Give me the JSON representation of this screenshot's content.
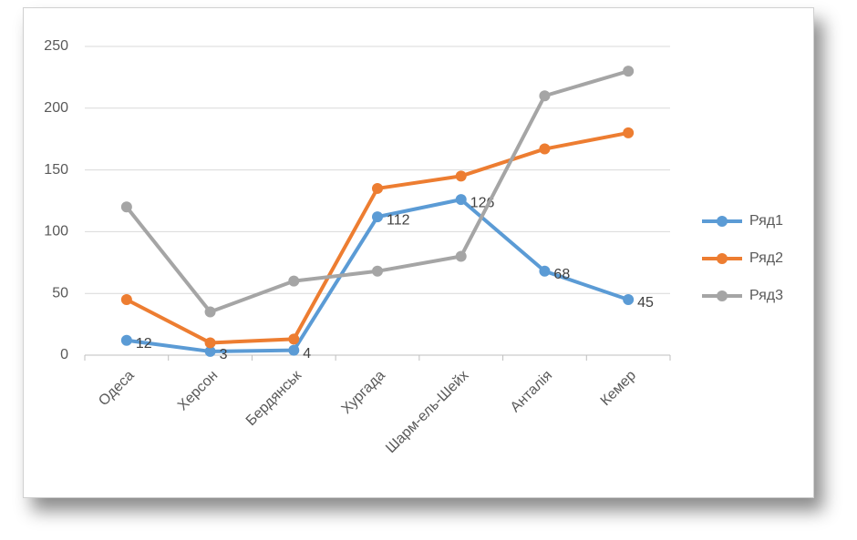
{
  "chart_data": {
    "type": "line",
    "categories": [
      "Одеса",
      "Херсон",
      "Бердянськ",
      "Хургада",
      "Шарм-ель-Шейх",
      "Анталія",
      "Кемер"
    ],
    "series": [
      {
        "name": "Ряд1",
        "color": "#5b9bd5",
        "values": [
          12,
          3,
          4,
          112,
          126,
          68,
          45
        ],
        "data_labels": true
      },
      {
        "name": "Ряд2",
        "color": "#ed7d31",
        "values": [
          45,
          10,
          13,
          135,
          145,
          167,
          180
        ],
        "data_labels": false
      },
      {
        "name": "Ряд3",
        "color": "#a5a5a5",
        "values": [
          120,
          35,
          60,
          68,
          80,
          210,
          230
        ],
        "data_labels": false
      }
    ],
    "ylim": [
      0,
      250
    ],
    "yticks": [
      0,
      50,
      100,
      150,
      200,
      250
    ],
    "grid": true,
    "legend": "right"
  }
}
